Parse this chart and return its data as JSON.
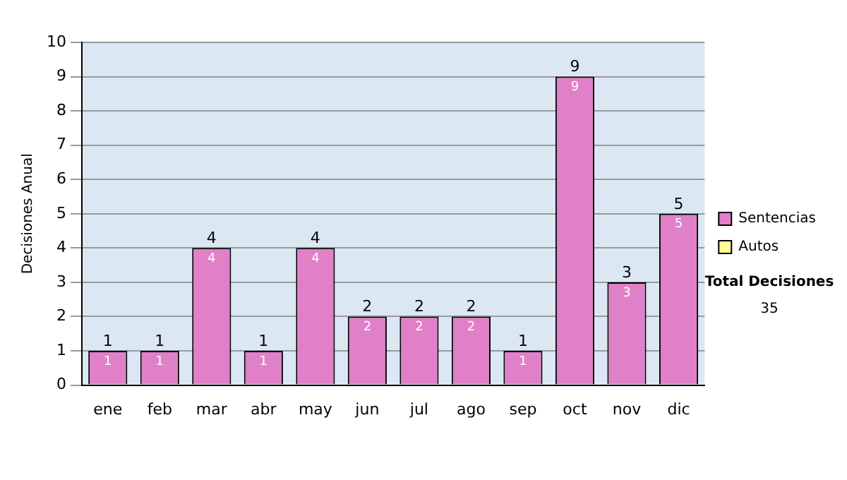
{
  "chart_data": {
    "type": "bar",
    "ylabel": "Decisiones Anual",
    "categories": [
      "ene",
      "feb",
      "mar",
      "abr",
      "may",
      "jun",
      "jul",
      "ago",
      "sep",
      "oct",
      "nov",
      "dic"
    ],
    "series": [
      {
        "name": "Sentencias",
        "color": "#e080c8",
        "values": [
          1,
          1,
          4,
          1,
          4,
          2,
          2,
          2,
          1,
          9,
          3,
          5
        ]
      },
      {
        "name": "Autos",
        "color": "#ffff99",
        "values": [
          null,
          null,
          null,
          null,
          null,
          null,
          null,
          null,
          null,
          null,
          null,
          null
        ]
      }
    ],
    "stacked": true,
    "data_labels": true,
    "totals": [
      "1",
      "1",
      "4",
      "1",
      "4",
      "2",
      "2",
      "2",
      "1",
      "9",
      "3",
      "5"
    ],
    "ylim": [
      0,
      10
    ],
    "yticks": [
      0,
      1,
      2,
      3,
      4,
      5,
      6,
      7,
      8,
      9,
      10
    ],
    "grid": "y",
    "legend": "right",
    "annotations": [
      "Total Decisiones",
      "35"
    ]
  }
}
